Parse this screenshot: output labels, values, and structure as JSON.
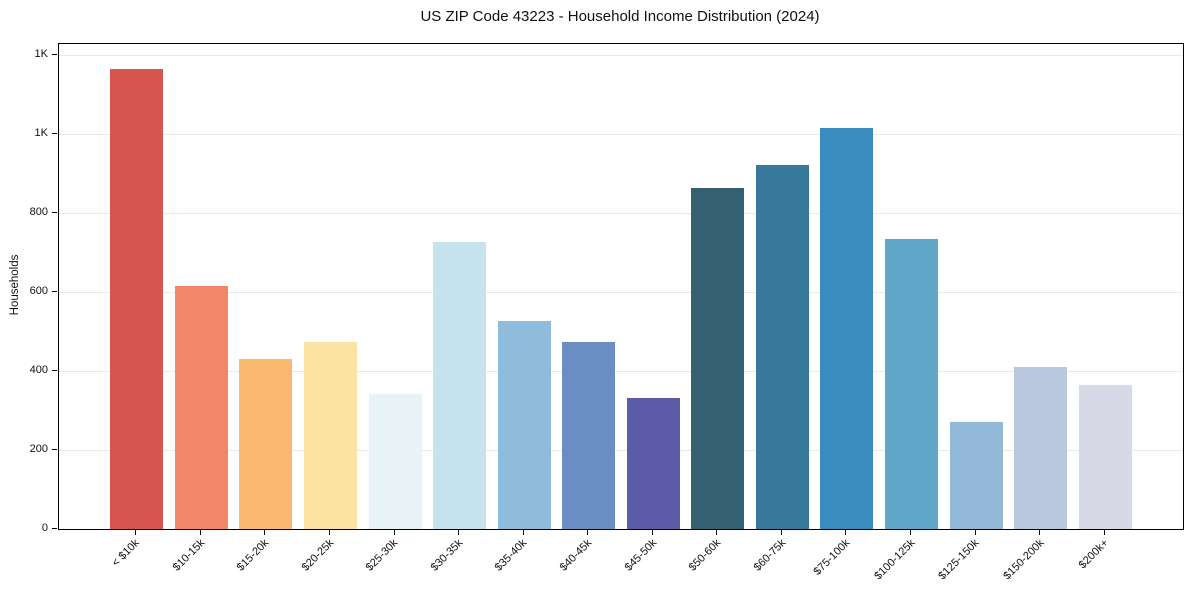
{
  "chart_data": {
    "type": "bar",
    "title": "US ZIP Code 43223 - Household Income Distribution (2024)",
    "xlabel": "",
    "ylabel": "Households",
    "categories": [
      "< $10k",
      "$10-15k",
      "$15-20k",
      "$20-25k",
      "$25-30k",
      "$30-35k",
      "$35-40k",
      "$40-45k",
      "$45-50k",
      "$50-60k",
      "$60-75k",
      "$75-100k",
      "$100-125k",
      "$125-150k",
      "$150-200k",
      "$200k+"
    ],
    "values": [
      1165,
      615,
      432,
      473,
      342,
      728,
      528,
      474,
      332,
      864,
      923,
      1015,
      734,
      270,
      410,
      366
    ],
    "bar_colors": [
      "#d6564f",
      "#f28767",
      "#fab96f",
      "#fde3a1",
      "#e8f3f6",
      "#c5e2ed",
      "#8fbcda",
      "#6a8ec4",
      "#5b5ba7",
      "#356072",
      "#38799b",
      "#398cbe",
      "#5fa6c9",
      "#93b7d6",
      "#b9c8df",
      "#d8d9e6"
    ],
    "ylim": [
      0,
      1229
    ],
    "yticks": [
      0,
      200,
      400,
      600,
      800,
      1000,
      1200
    ],
    "ytick_labels": [
      "0",
      "200",
      "400",
      "600",
      "800",
      "1K",
      "1K"
    ],
    "x_tick_rotation_deg": 45,
    "grid": "horizontal-only",
    "legend": "none",
    "colors": {
      "background": "#ffffff",
      "gridline": "#e9e9e9",
      "spine": "#000000",
      "text": "#111111"
    }
  }
}
